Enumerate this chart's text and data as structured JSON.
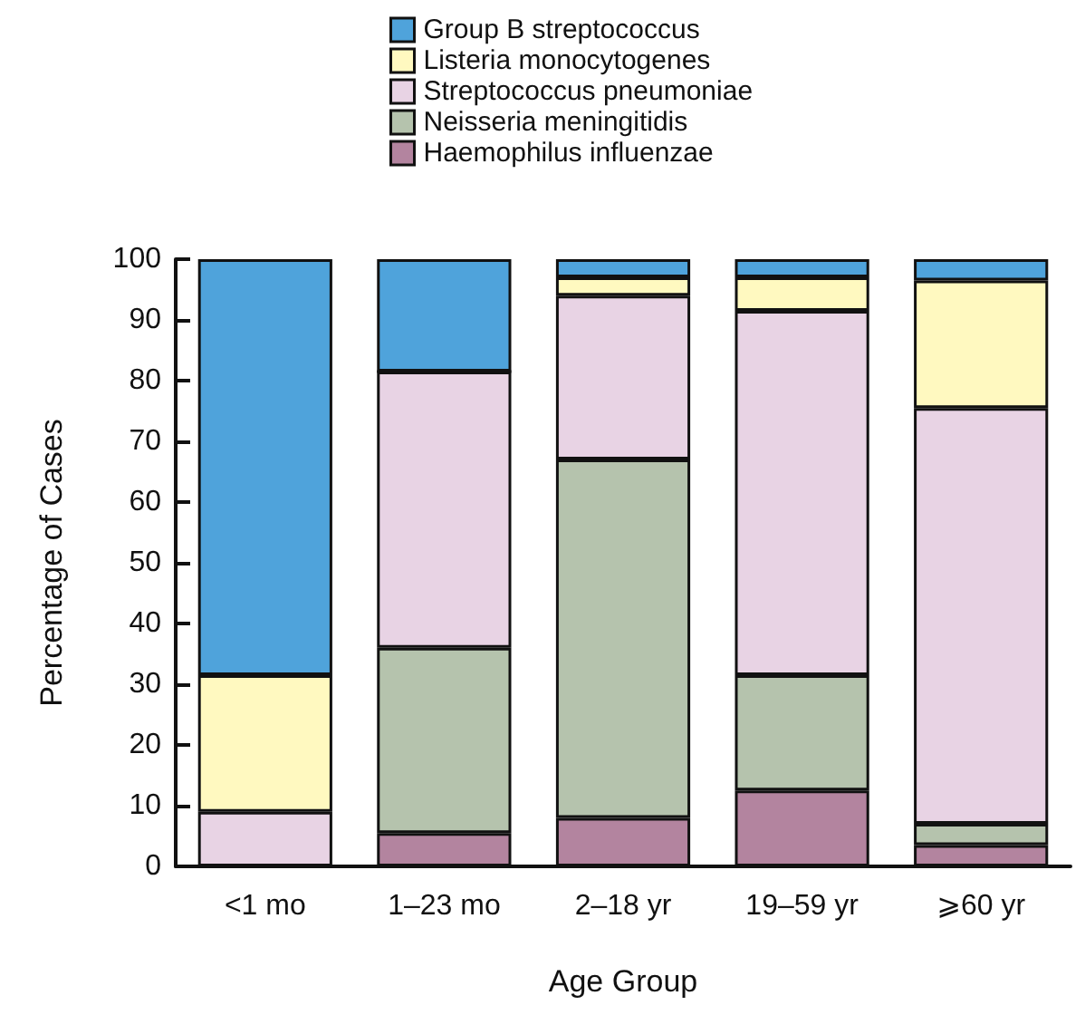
{
  "chart_data": {
    "type": "bar",
    "stacked": true,
    "xlabel": "Age Group",
    "ylabel": "Percentage of Cases",
    "categories": [
      "<1 mo",
      "1–23 mo",
      "2–18 yr",
      "19–59 yr",
      "⩾60 yr"
    ],
    "series": [
      {
        "name": "Haemophilus influenzae",
        "color": "#b3849f",
        "values": [
          0,
          5.5,
          8,
          12.5,
          3.5
        ]
      },
      {
        "name": "Neisseria meningitidis",
        "color": "#b5c3ad",
        "values": [
          0,
          30.5,
          59,
          19,
          3.5
        ]
      },
      {
        "name": "Streptococcus pneumoniae",
        "color": "#e8d3e4",
        "values": [
          9,
          45.5,
          27,
          60,
          68.5
        ]
      },
      {
        "name": "Listeria monocytogenes",
        "color": "#fff9c0",
        "values": [
          22.5,
          0,
          3,
          5.5,
          21
        ]
      },
      {
        "name": "Group B streptococcus",
        "color": "#4fa3db",
        "values": [
          68.5,
          18.5,
          3,
          3,
          3.5
        ]
      }
    ],
    "ylim": [
      0,
      100
    ],
    "yticks": [
      0,
      10,
      20,
      30,
      40,
      50,
      60,
      70,
      80,
      90,
      100
    ],
    "grid": false,
    "legend": "top"
  }
}
